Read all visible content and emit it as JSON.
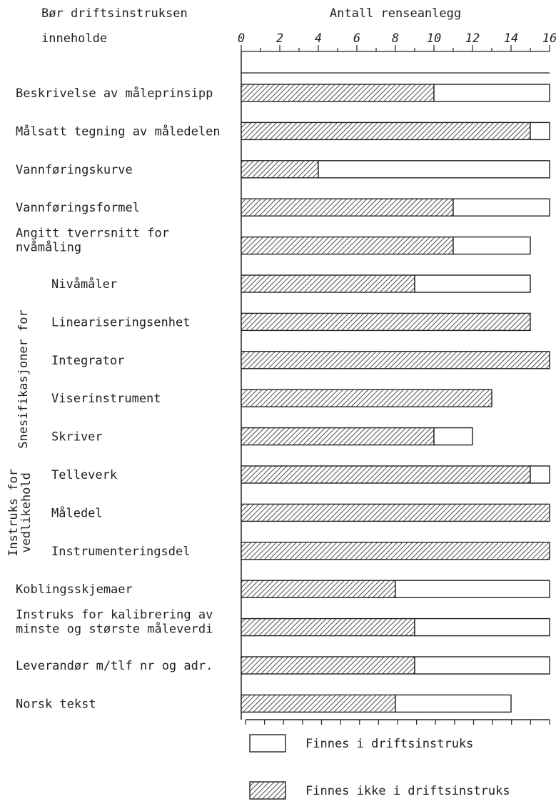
{
  "chart_data": {
    "type": "bar",
    "orientation": "horizontal",
    "stacked": true,
    "title_left": [
      "Bør driftsinstruksen",
      "inneholde"
    ],
    "xlabel": "Antall renseanlegg",
    "xlim": [
      0,
      16
    ],
    "xticks": [
      0,
      2,
      4,
      6,
      8,
      10,
      12,
      14,
      16
    ],
    "grid": false,
    "legend_position": "bottom",
    "group_labels": [
      {
        "text": "Snesifikasjoner for",
        "from": 5,
        "to": 10
      },
      {
        "text": "Instruks for",
        "from": 10,
        "to": 12
      },
      {
        "text": "vedlikehold",
        "from": 10,
        "to": 12
      }
    ],
    "categories": [
      {
        "lines": [
          "Beskrivelse av måleprinsipp"
        ],
        "indent": false
      },
      {
        "lines": [
          "Målsatt tegning av måledelen"
        ],
        "indent": false
      },
      {
        "lines": [
          "Vannføringskurve"
        ],
        "indent": false
      },
      {
        "lines": [
          "Vannføringsformel"
        ],
        "indent": false
      },
      {
        "lines": [
          "Angitt tverrsnitt for",
          "nvåmåling"
        ],
        "indent": false
      },
      {
        "lines": [
          "Nivåmåler"
        ],
        "indent": true
      },
      {
        "lines": [
          "Lineariseringsenhet"
        ],
        "indent": true
      },
      {
        "lines": [
          "Integrator"
        ],
        "indent": true
      },
      {
        "lines": [
          "Viserinstrument"
        ],
        "indent": true
      },
      {
        "lines": [
          "Skriver"
        ],
        "indent": true
      },
      {
        "lines": [
          "Telleverk"
        ],
        "indent": true
      },
      {
        "lines": [
          "Måledel"
        ],
        "indent": true
      },
      {
        "lines": [
          "Instrumenteringsdel"
        ],
        "indent": true
      },
      {
        "lines": [
          "Koblingsskjemaer"
        ],
        "indent": false
      },
      {
        "lines": [
          "Instruks for kalibrering av",
          "minste og største måleverdi"
        ],
        "indent": false
      },
      {
        "lines": [
          "Leverandør m/tlf nr og adr."
        ],
        "indent": false
      },
      {
        "lines": [
          "Norsk tekst"
        ],
        "indent": false
      }
    ],
    "series": [
      {
        "name": "Finnes ikke i driftsinstruks",
        "pattern": "hatched",
        "values": [
          10,
          15,
          4,
          11,
          11,
          9,
          15,
          16,
          13,
          10,
          15,
          16,
          16,
          8,
          9,
          9,
          8
        ]
      },
      {
        "name": "Finnes i driftsinstruks",
        "pattern": "white",
        "values": [
          6,
          1,
          12,
          5,
          4,
          6,
          0,
          0,
          0,
          2,
          1,
          0,
          0,
          8,
          7,
          7,
          6
        ]
      }
    ],
    "legend_order": [
      "Finnes i driftsinstruks",
      "Finnes ikke i driftsinstruks"
    ],
    "colors": {
      "ink": "#222222",
      "paper": "#ffffff"
    }
  }
}
